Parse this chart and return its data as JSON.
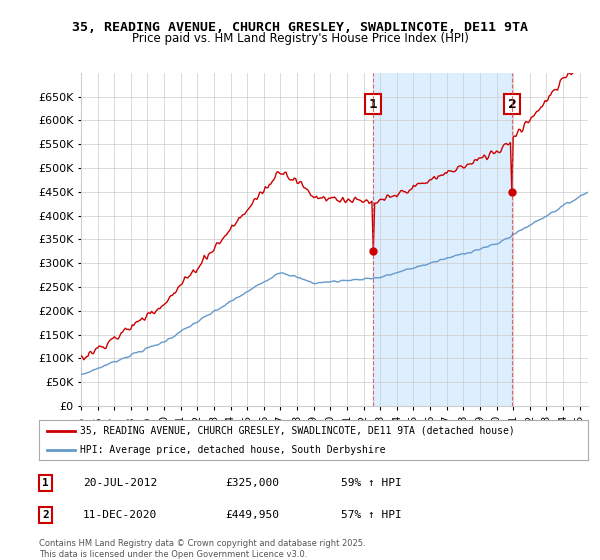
{
  "title_line1": "35, READING AVENUE, CHURCH GRESLEY, SWADLINCOTE, DE11 9TA",
  "title_line2": "Price paid vs. HM Land Registry's House Price Index (HPI)",
  "legend_label1": "35, READING AVENUE, CHURCH GRESLEY, SWADLINCOTE, DE11 9TA (detached house)",
  "legend_label2": "HPI: Average price, detached house, South Derbyshire",
  "annotation1_label": "1",
  "annotation1_date": "20-JUL-2012",
  "annotation1_price": "£325,000",
  "annotation1_pct": "59% ↑ HPI",
  "annotation2_label": "2",
  "annotation2_date": "11-DEC-2020",
  "annotation2_price": "£449,950",
  "annotation2_pct": "57% ↑ HPI",
  "footer": "Contains HM Land Registry data © Crown copyright and database right 2025.\nThis data is licensed under the Open Government Licence v3.0.",
  "line1_color": "#cc0000",
  "line2_color": "#6699cc",
  "shade_color": "#ddeeff",
  "ylim_min": 0,
  "ylim_max": 700000,
  "yticks": [
    0,
    50000,
    100000,
    150000,
    200000,
    250000,
    300000,
    350000,
    400000,
    450000,
    500000,
    550000,
    600000,
    650000
  ],
  "vline1_x": 2012.55,
  "vline2_x": 2020.95,
  "vline_color": "#dd4444",
  "marker1_x": 2012.55,
  "marker1_y": 325000,
  "marker2_x": 2020.95,
  "marker2_y": 449950,
  "background_color": "#ffffff",
  "grid_color": "#cccccc",
  "xmin": 1995,
  "xmax": 2025.5
}
